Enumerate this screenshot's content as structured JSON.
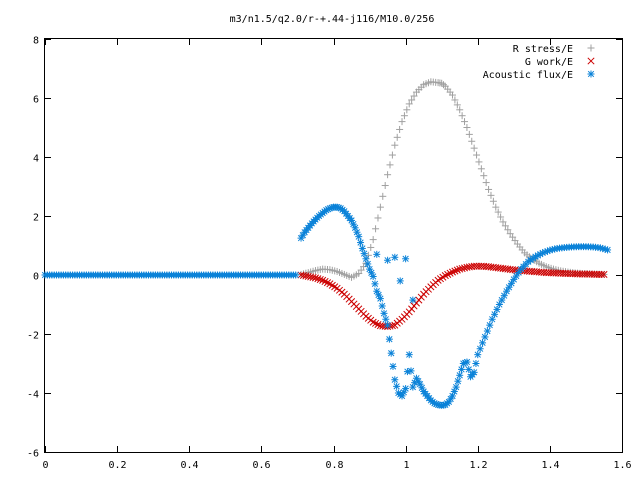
{
  "chart_data": {
    "type": "scatter",
    "title": "m3/n1.5/q2.0/r-+.44-j116/M10.0/256",
    "xlabel": "",
    "ylabel": "",
    "xlim": [
      0,
      1.6
    ],
    "ylim": [
      -6,
      8
    ],
    "xticks": [
      "0",
      "0.2",
      "0.4",
      "0.6",
      "0.8",
      "1",
      "1.2",
      "1.4",
      "1.6"
    ],
    "yticks": [
      "8",
      "6",
      "4",
      "2",
      "0",
      "-2",
      "-4",
      "-6"
    ],
    "grid": false,
    "legend_position": "top-right",
    "series": [
      {
        "name": "R stress/E",
        "marker": "plus",
        "color": "#a0a0a0",
        "x": [
          0.71,
          0.73,
          0.75,
          0.77,
          0.79,
          0.81,
          0.83,
          0.85,
          0.87,
          0.89,
          0.91,
          0.93,
          0.95,
          0.97,
          0.99,
          1.01,
          1.03,
          1.05,
          1.07,
          1.09,
          1.1,
          1.11,
          1.13,
          1.15,
          1.17,
          1.19,
          1.21,
          1.23,
          1.25,
          1.27,
          1.29,
          1.31,
          1.33,
          1.35,
          1.37,
          1.39,
          1.41,
          1.43,
          1.45,
          1.47,
          1.49,
          1.51,
          1.53,
          1.55
        ],
        "y": [
          0.02,
          0.08,
          0.15,
          0.2,
          0.18,
          0.12,
          0.02,
          -0.08,
          0.05,
          0.4,
          1.2,
          2.3,
          3.4,
          4.4,
          5.2,
          5.8,
          6.2,
          6.45,
          6.55,
          6.52,
          6.5,
          6.4,
          6.1,
          5.6,
          5.0,
          4.3,
          3.6,
          2.9,
          2.3,
          1.8,
          1.4,
          1.05,
          0.75,
          0.55,
          0.4,
          0.28,
          0.2,
          0.14,
          0.1,
          0.07,
          0.05,
          0.04,
          0.03,
          0.02
        ]
      },
      {
        "name": "G work/E",
        "marker": "cross",
        "color": "#cc0000",
        "x": [
          0.71,
          0.73,
          0.75,
          0.77,
          0.79,
          0.81,
          0.83,
          0.85,
          0.87,
          0.89,
          0.91,
          0.93,
          0.95,
          0.97,
          0.99,
          1.01,
          1.03,
          1.05,
          1.07,
          1.09,
          1.11,
          1.13,
          1.15,
          1.17,
          1.19,
          1.21,
          1.23,
          1.25,
          1.27,
          1.29,
          1.31,
          1.33,
          1.35,
          1.37,
          1.39,
          1.41,
          1.43,
          1.45,
          1.47,
          1.49,
          1.51,
          1.53,
          1.55
        ],
        "y": [
          0.0,
          -0.05,
          -0.1,
          -0.18,
          -0.3,
          -0.45,
          -0.65,
          -0.9,
          -1.15,
          -1.4,
          -1.6,
          -1.72,
          -1.75,
          -1.7,
          -1.5,
          -1.25,
          -0.95,
          -0.65,
          -0.4,
          -0.18,
          -0.02,
          0.1,
          0.2,
          0.26,
          0.3,
          0.3,
          0.28,
          0.25,
          0.22,
          0.19,
          0.16,
          0.14,
          0.12,
          0.1,
          0.08,
          0.07,
          0.06,
          0.05,
          0.04,
          0.03,
          0.03,
          0.02,
          0.02
        ]
      },
      {
        "name": "Acoustic flux/E",
        "marker": "star",
        "color": "#0a82d8",
        "x": [
          0.71,
          0.72,
          0.73,
          0.74,
          0.75,
          0.76,
          0.77,
          0.78,
          0.79,
          0.8,
          0.81,
          0.82,
          0.83,
          0.84,
          0.85,
          0.86,
          0.87,
          0.88,
          0.89,
          0.9,
          0.91,
          0.92,
          0.93,
          0.94,
          0.95,
          0.96,
          0.97,
          0.98,
          0.99,
          1.0,
          1.01,
          1.02,
          1.03,
          1.04,
          1.05,
          1.06,
          1.07,
          1.08,
          1.09,
          1.1,
          1.11,
          1.12,
          1.13,
          1.14,
          1.15,
          1.16,
          1.17,
          1.18,
          1.19,
          1.2,
          1.22,
          1.24,
          1.26,
          1.28,
          1.3,
          1.32,
          1.34,
          1.36,
          1.38,
          1.4,
          1.42,
          1.44,
          1.46,
          1.48,
          1.5,
          1.52,
          1.54,
          1.56
        ],
        "y": [
          1.25,
          1.45,
          1.6,
          1.75,
          1.88,
          2.0,
          2.1,
          2.2,
          2.26,
          2.3,
          2.3,
          2.26,
          2.16,
          2.0,
          1.85,
          1.6,
          1.3,
          0.9,
          0.55,
          0.2,
          -0.05,
          -0.55,
          -0.8,
          -1.3,
          -1.7,
          -2.65,
          -3.55,
          -4.0,
          -4.1,
          -3.85,
          -2.7,
          -3.8,
          -3.5,
          -3.7,
          -3.95,
          -4.1,
          -4.25,
          -4.35,
          -4.4,
          -4.42,
          -4.4,
          -4.3,
          -4.1,
          -3.8,
          -3.4,
          -3.0,
          -2.95,
          -3.45,
          -3.3,
          -2.7,
          -2.1,
          -1.5,
          -1.0,
          -0.55,
          -0.15,
          0.2,
          0.45,
          0.62,
          0.75,
          0.84,
          0.9,
          0.93,
          0.95,
          0.96,
          0.96,
          0.95,
          0.92,
          0.85
        ]
      }
    ],
    "zero_segment_x": [
      0.0,
      0.7
    ],
    "outliers": {
      "name": "Acoustic flux/E",
      "x": [
        0.92,
        0.95,
        0.97,
        0.985,
        1.0,
        1.02
      ],
      "y": [
        0.7,
        0.5,
        0.6,
        -0.2,
        0.55,
        -0.85
      ]
    }
  }
}
